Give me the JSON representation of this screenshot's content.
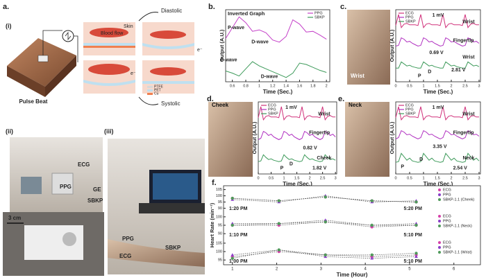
{
  "figure": {
    "panel_labels": [
      "a.",
      "b.",
      "c.",
      "d.",
      "e.",
      "f."
    ],
    "sub_labels": [
      "(i)",
      "(ii)",
      "(iii)"
    ],
    "diagram": {
      "pulse_beat": "Pulse Beat",
      "diastolic": "Diastolic",
      "systolic": "Systolic",
      "skin": "Skin",
      "blood_flow": "Blood flow",
      "electron": "e⁻",
      "layers": [
        "PTFE",
        "PET",
        "Cu"
      ]
    },
    "photos": {
      "ii": [
        "ECG",
        "PPG",
        "GE",
        "SBKP",
        "3 cm"
      ],
      "iii": [
        "PPG",
        "SBKP",
        "ECG"
      ],
      "c": "Wrist",
      "d": "Cheek",
      "e": "Neck"
    }
  },
  "chart_data": [
    {
      "type": "wave",
      "title": "Inverted Graph",
      "xlabel": "Time (Sec.)",
      "ylabel": "Output (A.U.)",
      "xlim": [
        0.5,
        2.05
      ],
      "ylim": [
        0,
        10
      ],
      "xticks": [
        0.6,
        0.8,
        1.0,
        1.2,
        1.4,
        1.6,
        1.8,
        2.0
      ],
      "x": [
        0.5,
        0.6,
        0.7,
        0.8,
        0.9,
        1.0,
        1.1,
        1.2,
        1.3,
        1.4,
        1.5,
        1.6,
        1.7,
        1.8,
        1.9,
        2.0
      ],
      "series": [
        {
          "name": "PPG",
          "color": "#c43fc8",
          "values": [
            6.0,
            7.5,
            9.0,
            8.2,
            7.0,
            7.2,
            6.8,
            5.8,
            5.5,
            6.3,
            8.6,
            8.0,
            6.9,
            7.0,
            6.5,
            5.9
          ]
        },
        {
          "name": "SBKP",
          "color": "#3d9a5a",
          "values": [
            1.5,
            1.2,
            0.8,
            1.8,
            2.8,
            2.2,
            1.8,
            1.4,
            1.0,
            0.6,
            1.2,
            2.6,
            2.4,
            2.0,
            1.6,
            1.3
          ]
        }
      ],
      "annotations": [
        "P-wave",
        "D-wave",
        "P-wave",
        "D-wave"
      ]
    },
    {
      "type": "wave",
      "xlabel": "Time (Sec.)",
      "ylabel": "Output (A.U.)",
      "xlim": [
        0,
        3.05
      ],
      "ylim": [
        0,
        10.5
      ],
      "xticks": [
        0.0,
        0.5,
        1.0,
        1.5,
        2.0,
        2.5,
        3.0
      ],
      "x": [
        0,
        0.1,
        0.2,
        0.3,
        0.4,
        0.5,
        0.6,
        0.7,
        0.8,
        0.9,
        1.0,
        1.1,
        1.2,
        1.3,
        1.4,
        1.5,
        1.6,
        1.7,
        1.8,
        1.9,
        2.0,
        2.1,
        2.2,
        2.3,
        2.4,
        2.5,
        2.6,
        2.7,
        2.8,
        2.9,
        3.0
      ],
      "series": [
        {
          "name": "ECG",
          "color": "#d0307a",
          "values": [
            8.2,
            9.8,
            7.9,
            8.4,
            8.5,
            8.3,
            8.3,
            8.3,
            8.2,
            9.8,
            7.9,
            8.4,
            8.5,
            8.3,
            8.3,
            8.3,
            8.2,
            9.8,
            7.9,
            8.4,
            8.5,
            8.3,
            8.3,
            8.3,
            8.2,
            9.8,
            7.9,
            8.4,
            8.5,
            8.3,
            8.3
          ]
        },
        {
          "name": "PPG",
          "color": "#b02fc0",
          "values": [
            5.2,
            5.3,
            6.4,
            6.2,
            5.8,
            5.9,
            5.6,
            5.4,
            5.2,
            5.3,
            6.4,
            6.2,
            5.8,
            5.9,
            5.6,
            5.4,
            5.2,
            5.3,
            6.4,
            6.2,
            5.8,
            5.9,
            5.6,
            5.4,
            5.2,
            5.3,
            6.4,
            6.2,
            5.8,
            5.9,
            5.6
          ]
        },
        {
          "name": "SBKP",
          "color": "#3d9a5a",
          "values": [
            2.0,
            2.0,
            2.9,
            2.6,
            2.3,
            2.4,
            2.2,
            2.1,
            2.0,
            2.0,
            2.9,
            2.6,
            2.3,
            2.4,
            2.2,
            2.1,
            2.0,
            2.0,
            2.9,
            2.6,
            2.3,
            2.4,
            2.2,
            2.1,
            2.0,
            2.0,
            2.9,
            2.6,
            2.3,
            2.4,
            2.2
          ]
        }
      ],
      "annotations": [
        "Wrist",
        "1 mV",
        "Fingertip",
        "Wrist",
        "0.69 V",
        "2.81 V",
        "P",
        "D"
      ]
    },
    {
      "type": "wave",
      "xlabel": "Time (Sec.)",
      "ylabel": "Output (A.U.)",
      "xlim": [
        0,
        3.05
      ],
      "ylim": [
        0,
        10.5
      ],
      "xticks": [
        0.0,
        0.5,
        1.0,
        1.5,
        2.0,
        2.5,
        3.0
      ],
      "x": [
        0,
        0.1,
        0.2,
        0.3,
        0.4,
        0.5,
        0.6,
        0.7,
        0.8,
        0.9,
        1.0,
        1.1,
        1.2,
        1.3,
        1.4,
        1.5,
        1.6,
        1.7,
        1.8,
        1.9,
        2.0,
        2.1,
        2.2,
        2.3,
        2.4,
        2.5,
        2.6,
        2.7,
        2.8,
        2.9,
        3.0
      ],
      "series": [
        {
          "name": "ECG",
          "color": "#d0307a",
          "values": [
            8.2,
            9.8,
            7.9,
            8.4,
            8.5,
            8.3,
            8.3,
            8.3,
            8.2,
            9.8,
            7.9,
            8.4,
            8.5,
            8.3,
            8.3,
            8.3,
            8.2,
            9.8,
            7.9,
            8.4,
            8.5,
            8.3,
            8.3,
            8.3,
            8.2,
            9.8,
            7.9,
            8.4,
            8.5,
            8.3,
            8.3
          ]
        },
        {
          "name": "PPG",
          "color": "#b02fc0",
          "values": [
            5.0,
            5.2,
            6.2,
            6.0,
            5.6,
            5.8,
            5.4,
            5.2,
            5.0,
            5.2,
            6.2,
            6.0,
            5.6,
            5.8,
            5.4,
            5.2,
            5.0,
            5.2,
            6.2,
            6.0,
            5.6,
            5.8,
            5.4,
            5.2,
            5.0,
            5.2,
            6.2,
            6.0,
            5.6,
            5.8,
            5.4
          ]
        },
        {
          "name": "SBKP",
          "color": "#3d9a5a",
          "values": [
            1.8,
            1.9,
            2.8,
            2.4,
            2.1,
            2.2,
            2.0,
            1.9,
            1.8,
            1.9,
            2.8,
            2.4,
            2.1,
            2.2,
            2.0,
            1.9,
            1.8,
            1.9,
            2.8,
            2.4,
            2.1,
            2.2,
            2.0,
            1.9,
            1.8,
            1.9,
            2.8,
            2.4,
            2.1,
            2.2,
            2.0
          ]
        }
      ],
      "annotations": [
        "Wrist",
        "1 mV",
        "Fingertip",
        "0.82 V",
        "Cheek",
        "1.82 V",
        "P",
        "D"
      ]
    },
    {
      "type": "wave",
      "xlabel": "Time (Sec.)",
      "ylabel": "Output (A.U.)",
      "xlim": [
        0,
        3.05
      ],
      "ylim": [
        0,
        10.5
      ],
      "xticks": [
        0.0,
        0.5,
        1.0,
        1.5,
        2.0,
        2.5,
        3.0
      ],
      "x": [
        0,
        0.1,
        0.2,
        0.3,
        0.4,
        0.5,
        0.6,
        0.7,
        0.8,
        0.9,
        1.0,
        1.1,
        1.2,
        1.3,
        1.4,
        1.5,
        1.6,
        1.7,
        1.8,
        1.9,
        2.0,
        2.1,
        2.2,
        2.3,
        2.4,
        2.5,
        2.6,
        2.7,
        2.8,
        2.9,
        3.0
      ],
      "series": [
        {
          "name": "ECG",
          "color": "#d0307a",
          "values": [
            8.2,
            9.8,
            7.9,
            8.4,
            8.5,
            8.3,
            8.3,
            8.3,
            8.2,
            9.8,
            7.9,
            8.4,
            8.5,
            8.3,
            8.3,
            8.3,
            8.2,
            9.8,
            7.9,
            8.4,
            8.5,
            8.3,
            8.3,
            8.3,
            8.2,
            9.8,
            7.9,
            8.4,
            8.5,
            8.3,
            8.3
          ]
        },
        {
          "name": "PPG",
          "color": "#b02fc0",
          "values": [
            5.1,
            5.3,
            6.3,
            6.1,
            5.7,
            5.8,
            5.5,
            5.3,
            5.1,
            5.3,
            6.3,
            6.1,
            5.7,
            5.8,
            5.5,
            5.3,
            5.1,
            5.3,
            6.3,
            6.1,
            5.7,
            5.8,
            5.5,
            5.3,
            5.1,
            5.3,
            6.3,
            6.1,
            5.7,
            5.8,
            5.5
          ]
        },
        {
          "name": "SBKP",
          "color": "#3d9a5a",
          "values": [
            1.7,
            1.8,
            3.0,
            2.5,
            2.0,
            2.3,
            1.9,
            1.8,
            1.7,
            1.8,
            3.0,
            2.5,
            2.0,
            2.3,
            1.9,
            1.8,
            1.7,
            1.8,
            3.0,
            2.5,
            2.0,
            2.3,
            1.9,
            1.8,
            1.7,
            1.8,
            3.0,
            2.5,
            2.0,
            2.3,
            1.9
          ]
        }
      ],
      "annotations": [
        "Wrist",
        "1 mV",
        "Fingertip",
        "3.35 V",
        "Neck",
        "2.54 V",
        "P",
        "D"
      ]
    },
    {
      "type": "groups",
      "ylabel": "Heart Rate (min⁻¹)",
      "xlabel": "Time (Hour)",
      "xlim": [
        0.8,
        6.6
      ],
      "xticks": [
        1,
        2,
        3,
        4,
        5,
        6
      ],
      "x": [
        1,
        2.05,
        3.1,
        4.15,
        5.15
      ],
      "groups": [
        {
          "ylim": [
            88,
            107
          ],
          "yticks": [
            90,
            95,
            100,
            105
          ],
          "start": "1:20 PM",
          "end": "5:20 PM",
          "series": [
            {
              "name": "ECG",
              "color": "#d63fa8",
              "values": [
                98,
                96,
                99,
                96,
                95
              ]
            },
            {
              "name": "PPG",
              "color": "#8a3fc8",
              "values": [
                97,
                95,
                100,
                95,
                96
              ]
            },
            {
              "name": "SBKP-1.1 (Cheek)",
              "color": "#4f9a5a",
              "values": [
                98,
                96,
                99,
                96,
                95
              ]
            }
          ]
        },
        {
          "ylim": [
            88,
            102
          ],
          "yticks": [
            90,
            95,
            100
          ],
          "start": "1:10 PM",
          "end": "5:10 PM",
          "series": [
            {
              "name": "ECG",
              "color": "#d63fa8",
              "values": [
                95,
                95,
                97,
                94,
                95
              ]
            },
            {
              "name": "PPG",
              "color": "#8a3fc8",
              "values": [
                96,
                96,
                98,
                95,
                96
              ]
            },
            {
              "name": "SBKP-1.1 (Neck)",
              "color": "#4f9a5a",
              "values": [
                95,
                96,
                97,
                95,
                95
              ]
            }
          ]
        },
        {
          "ylim": [
            93,
            107
          ],
          "yticks": [
            95,
            100,
            105
          ],
          "start": "1:00 PM",
          "end": "5:10 PM",
          "series": [
            {
              "name": "ECG",
              "color": "#d63fa8",
              "values": [
                97,
                100,
                98,
                97,
                98
              ]
            },
            {
              "name": "PPG",
              "color": "#8a3fc8",
              "values": [
                98,
                101,
                97,
                96,
                97
              ]
            },
            {
              "name": "SBKP-1.1 (Wrist)",
              "color": "#4f9a5a",
              "values": [
                96,
                101,
                98,
                98,
                99
              ]
            }
          ]
        }
      ]
    }
  ]
}
